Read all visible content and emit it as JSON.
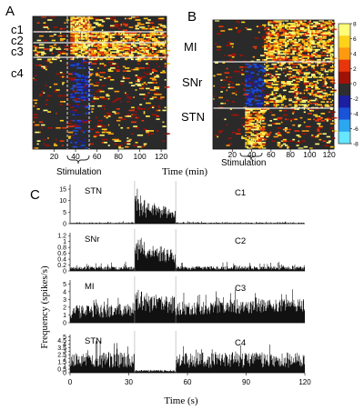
{
  "chart_data": [
    {
      "panel": "A",
      "type": "heatmap",
      "cluster_labels": [
        "c1",
        "c2",
        "c3",
        "c4"
      ],
      "x_ticks": [
        20,
        40,
        60,
        80,
        100,
        120
      ],
      "x_label": "Stimulation",
      "stimulation_window_min": [
        32,
        52
      ]
    },
    {
      "panel": "B",
      "type": "heatmap",
      "region_labels": [
        "MI",
        "SNr",
        "STN"
      ],
      "x_ticks": [
        20,
        40,
        60,
        80,
        100,
        120
      ],
      "x_label": "Stimulation",
      "shared_x_label": "Time (min)",
      "colorbar": {
        "ticks": [
          8,
          6,
          4,
          2,
          0,
          -2,
          -4,
          -6,
          -8
        ],
        "colors": [
          "#fffd7a",
          "#ffd21a",
          "#ff9a10",
          "#e8360c",
          "#a01208",
          "#2e2e2e",
          "#1c1fa0",
          "#1a52d8",
          "#2ba6f0",
          "#66e6ff"
        ]
      }
    },
    {
      "panel": "C",
      "type": "bar",
      "x_label": "Time (s)",
      "y_label": "Frequency (spikes/s)",
      "x_ticks": [
        0,
        30,
        60,
        90,
        120
      ],
      "xlim": [
        0,
        120
      ],
      "stimulation_window_s": [
        33,
        54
      ],
      "series": [
        {
          "name": "STN",
          "cluster": "C1",
          "yticks": [
            0,
            5,
            10,
            15
          ],
          "ylim": [
            0,
            17
          ],
          "baseline": 0.35,
          "noise": 0.6,
          "stim_level": 4.5,
          "stim_peak": 15.5,
          "seed": 11
        },
        {
          "name": "SNr",
          "cluster": "C2",
          "yticks": [
            0,
            0.2,
            0.4,
            0.6,
            0.8,
            1.0,
            1.2
          ],
          "ylim": [
            0,
            1.3
          ],
          "baseline": 0.12,
          "noise": 0.2,
          "stim_level": 0.55,
          "stim_peak": 1.2,
          "seed": 23
        },
        {
          "name": "MI",
          "cluster": "C3",
          "yticks": [
            0,
            1,
            2,
            3,
            4,
            5
          ],
          "ylim": [
            0,
            5.5
          ],
          "baseline": 1.7,
          "noise": 1.6,
          "stim_level": 2.3,
          "stim_peak": 4.0,
          "seed": 37
        },
        {
          "name": "STN",
          "cluster": "C4",
          "yticks": [
            0,
            0.5,
            1,
            1.5,
            2,
            2.5,
            3,
            3.5,
            4,
            4.5,
            5
          ],
          "ylim": [
            0,
            5.3
          ],
          "baseline": 2.2,
          "noise": 2.2,
          "stim_level": 0.5,
          "stim_peak": 0.7,
          "seed": 53
        }
      ]
    }
  ],
  "labels": {
    "panel_a": "A",
    "panel_b": "B",
    "panel_c": "C",
    "time_min": "Time (min)",
    "stimulation": "Stimulation",
    "time_s": "Time (s)",
    "freq": "Frequency (spikes/s)"
  }
}
